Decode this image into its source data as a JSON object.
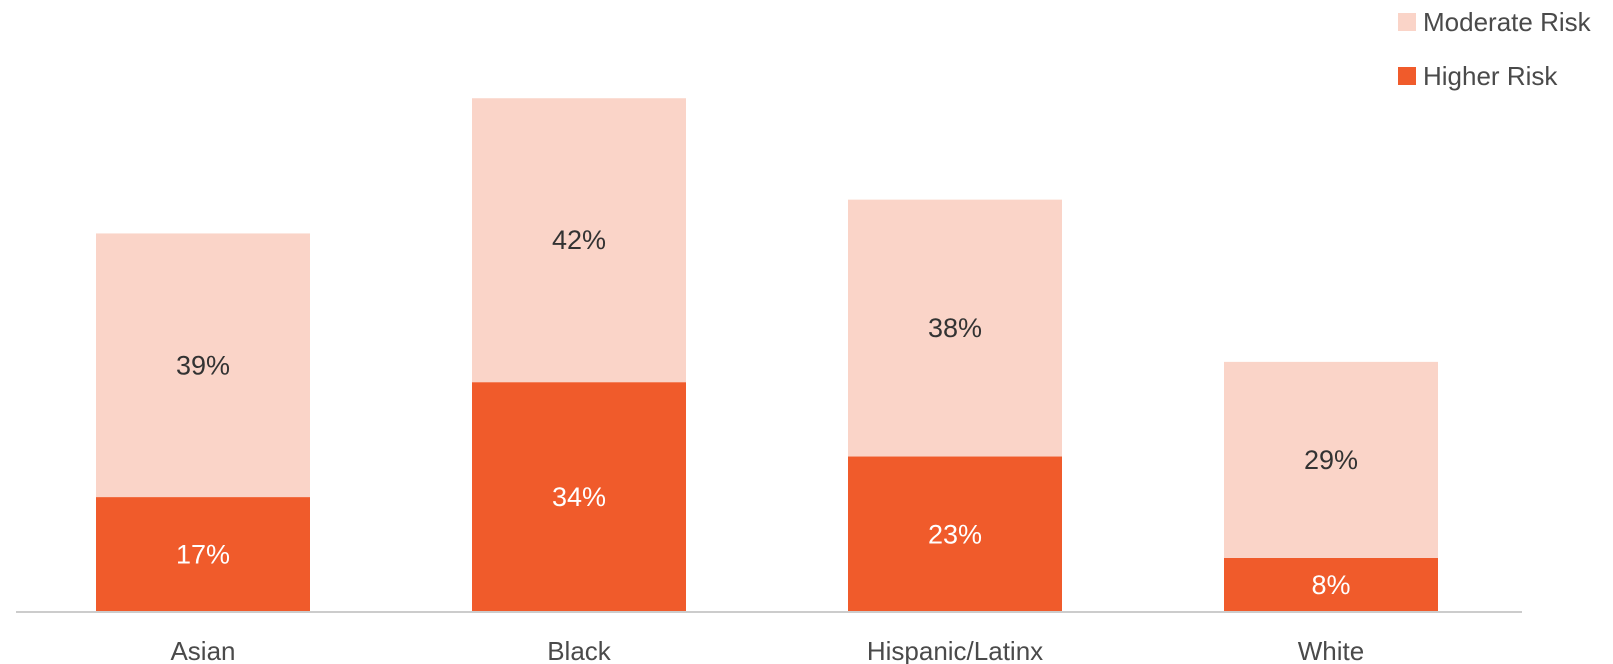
{
  "chart_data": {
    "type": "bar",
    "stacked": true,
    "categories": [
      "Asian",
      "Black",
      "Hispanic/Latinx",
      "White"
    ],
    "series": [
      {
        "name": "Higher Risk",
        "values": [
          17,
          34,
          23,
          8
        ],
        "labels": [
          "17%",
          "34%",
          "23%",
          "8%"
        ],
        "color": "#f05b2b",
        "label_color": "#ffffff"
      },
      {
        "name": "Moderate Risk",
        "values": [
          39,
          42,
          38,
          29
        ],
        "labels": [
          "39%",
          "42%",
          "38%",
          "29%"
        ],
        "color": "#fad4c8",
        "label_color": "#333333"
      }
    ],
    "legend": {
      "position": "top-right",
      "order": [
        "Moderate Risk",
        "Higher Risk"
      ]
    },
    "ylim": [
      0,
      76
    ],
    "grid": false,
    "baseline_color": "#cccccc"
  }
}
